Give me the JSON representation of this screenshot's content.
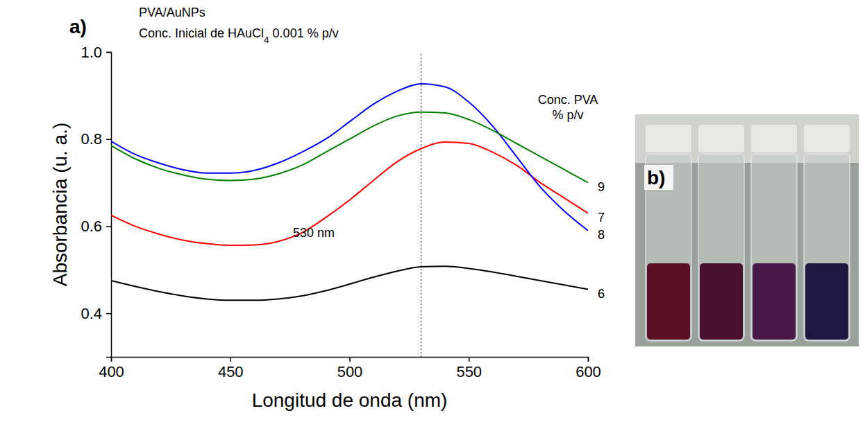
{
  "chart_data": {
    "type": "line",
    "title": "PVA/AuNPs",
    "subtitle": "Conc. Inicial de HAuCl4 0.001 % p/v",
    "x_label": "Longitud de onda (nm)",
    "y_label": "Absorbancia (u. a.)",
    "panel_labels": [
      "a)",
      "b)"
    ],
    "legend_title": "Conc. PVA % p/v",
    "legend": "right",
    "grid": false,
    "xlim": [
      400,
      600
    ],
    "xticks": [
      400,
      450,
      500,
      550,
      600
    ],
    "ylim": [
      0.3,
      1.0
    ],
    "yticks": [
      0.4,
      0.6,
      0.8,
      {
        "value": 1.0,
        "label": "1.0"
      }
    ],
    "x": [
      400,
      410,
      420,
      430,
      440,
      450,
      460,
      470,
      480,
      490,
      500,
      510,
      520,
      530,
      540,
      550,
      560,
      570,
      580,
      590,
      600
    ],
    "series": [
      {
        "name": "6",
        "color": "#000000",
        "values": [
          0.475,
          0.462,
          0.45,
          0.44,
          0.433,
          0.43,
          0.43,
          0.433,
          0.44,
          0.452,
          0.467,
          0.483,
          0.497,
          0.507,
          0.508,
          0.503,
          0.495,
          0.485,
          0.475,
          0.465,
          0.455
        ]
      },
      {
        "name": "7",
        "color": "#ff0000",
        "values": [
          0.625,
          0.6,
          0.582,
          0.568,
          0.56,
          0.556,
          0.557,
          0.565,
          0.585,
          0.62,
          0.66,
          0.705,
          0.748,
          0.778,
          0.793,
          0.79,
          0.77,
          0.74,
          0.7,
          0.665,
          0.63
        ]
      },
      {
        "name": "8",
        "color": "#0000ff",
        "values": [
          0.795,
          0.765,
          0.745,
          0.73,
          0.722,
          0.722,
          0.728,
          0.745,
          0.77,
          0.8,
          0.84,
          0.88,
          0.91,
          0.927,
          0.92,
          0.885,
          0.83,
          0.76,
          0.69,
          0.635,
          0.59
        ]
      },
      {
        "name": "9",
        "color": "#008000",
        "values": [
          0.785,
          0.755,
          0.733,
          0.718,
          0.708,
          0.705,
          0.708,
          0.72,
          0.74,
          0.77,
          0.8,
          0.83,
          0.853,
          0.862,
          0.86,
          0.845,
          0.82,
          0.79,
          0.76,
          0.73,
          0.7
        ]
      }
    ],
    "reference_lines": [
      {
        "x": 530,
        "line_style": "dotted"
      }
    ],
    "annotations": [
      {
        "text": "530 nm",
        "x": 485,
        "y": 0.575
      }
    ]
  }
}
